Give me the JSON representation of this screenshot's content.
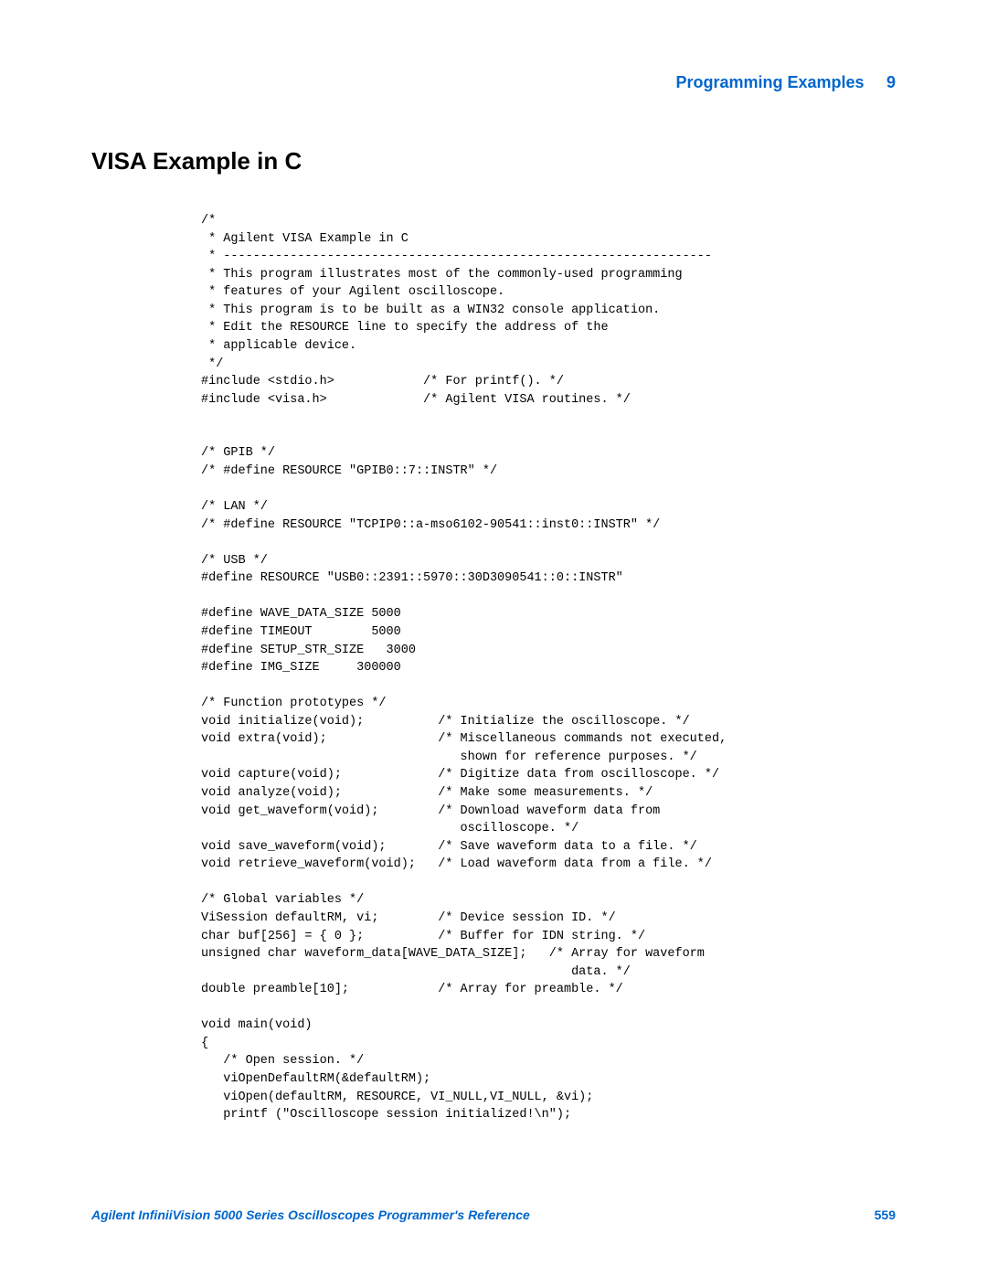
{
  "header": {
    "title": "Programming Examples",
    "chapter_number": "9"
  },
  "section": {
    "title": "VISA Example in C"
  },
  "code": {
    "lines": [
      "/*",
      " * Agilent VISA Example in C",
      " * ------------------------------------------------------------------",
      " * This program illustrates most of the commonly-used programming",
      " * features of your Agilent oscilloscope.",
      " * This program is to be built as a WIN32 console application.",
      " * Edit the RESOURCE line to specify the address of the",
      " * applicable device.",
      " */",
      "#include <stdio.h>            /* For printf(). */",
      "#include <visa.h>             /* Agilent VISA routines. */",
      "",
      "",
      "/* GPIB */",
      "/* #define RESOURCE \"GPIB0::7::INSTR\" */",
      "",
      "/* LAN */",
      "/* #define RESOURCE \"TCPIP0::a-mso6102-90541::inst0::INSTR\" */",
      "",
      "/* USB */",
      "#define RESOURCE \"USB0::2391::5970::30D3090541::0::INSTR\"",
      "",
      "#define WAVE_DATA_SIZE 5000",
      "#define TIMEOUT        5000",
      "#define SETUP_STR_SIZE   3000",
      "#define IMG_SIZE     300000",
      "",
      "/* Function prototypes */",
      "void initialize(void);          /* Initialize the oscilloscope. */",
      "void extra(void);               /* Miscellaneous commands not executed,",
      "                                   shown for reference purposes. */",
      "void capture(void);             /* Digitize data from oscilloscope. */",
      "void analyze(void);             /* Make some measurements. */",
      "void get_waveform(void);        /* Download waveform data from",
      "                                   oscilloscope. */",
      "void save_waveform(void);       /* Save waveform data to a file. */",
      "void retrieve_waveform(void);   /* Load waveform data from a file. */",
      "",
      "/* Global variables */",
      "ViSession defaultRM, vi;        /* Device session ID. */",
      "char buf[256] = { 0 };          /* Buffer for IDN string. */",
      "unsigned char waveform_data[WAVE_DATA_SIZE];   /* Array for waveform",
      "                                                  data. */",
      "double preamble[10];            /* Array for preamble. */",
      "",
      "void main(void)",
      "{",
      "   /* Open session. */",
      "   viOpenDefaultRM(&defaultRM);",
      "   viOpen(defaultRM, RESOURCE, VI_NULL,VI_NULL, &vi);",
      "   printf (\"Oscilloscope session initialized!\\n\");"
    ]
  },
  "footer": {
    "title": "Agilent InfiniiVision 5000 Series Oscilloscopes Programmer's Reference",
    "page_number": "559"
  },
  "colors": {
    "accent": "#0066cc",
    "text": "#000000",
    "background": "#ffffff"
  },
  "typography": {
    "header_fontsize": 18,
    "section_title_fontsize": 26,
    "code_fontsize": 13.5,
    "footer_fontsize": 14,
    "code_font": "Courier New"
  }
}
